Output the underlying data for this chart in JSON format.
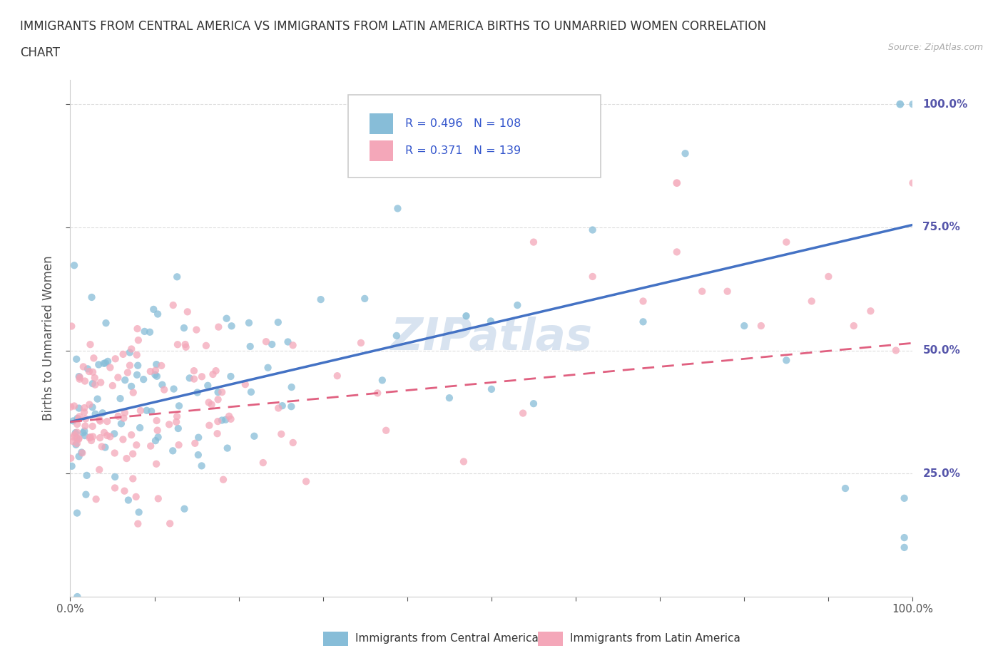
{
  "title_line1": "IMMIGRANTS FROM CENTRAL AMERICA VS IMMIGRANTS FROM LATIN AMERICA BIRTHS TO UNMARRIED WOMEN CORRELATION",
  "title_line2": "CHART",
  "source_text": "Source: ZipAtlas.com",
  "ylabel": "Births to Unmarried Women",
  "legend_label_blue": "Immigrants from Central America",
  "legend_label_pink": "Immigrants from Latin America",
  "watermark": "ZIPatlas",
  "R_blue": 0.496,
  "N_blue": 108,
  "R_pink": 0.371,
  "N_pink": 139,
  "color_blue": "#87bdd8",
  "color_pink": "#f4a7b9",
  "color_line_blue": "#4472c4",
  "color_line_pink": "#e06080",
  "color_axis_text": "#5555aa",
  "color_legend_text": "#3355cc",
  "color_watermark": "#b8cce4",
  "color_grid": "#dddddd",
  "color_title": "#333333",
  "color_source": "#aaaaaa",
  "color_ylabel": "#555555",
  "color_tick": "#555555",
  "xlim": [
    0.0,
    1.0
  ],
  "ylim_min": 0.0,
  "ylim_max": 1.05,
  "blue_line_x0": 0.0,
  "blue_line_y0": 0.355,
  "blue_line_x1": 1.0,
  "blue_line_y1": 0.755,
  "pink_line_x0": 0.0,
  "pink_line_y0": 0.355,
  "pink_line_x1": 1.0,
  "pink_line_y1": 0.515,
  "seed_blue": 17,
  "seed_pink": 99
}
